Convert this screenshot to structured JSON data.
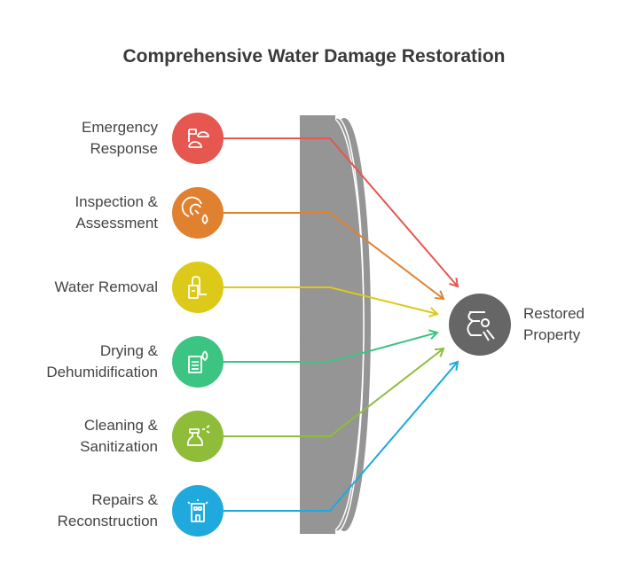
{
  "title": "Comprehensive Water Damage Restoration",
  "inputs": [
    {
      "label_line1": "Emergency",
      "label_line2": "Response",
      "color": "#E5574F",
      "icon": "flag-tents-icon"
    },
    {
      "label_line1": "Inspection &",
      "label_line2": "Assessment",
      "color": "#E0812F",
      "icon": "gauge-drop-icon"
    },
    {
      "label_line1": "Water Removal",
      "label_line2": "",
      "color": "#DDCA18",
      "icon": "vacuum-icon"
    },
    {
      "label_line1": "Drying &",
      "label_line2": "Dehumidification",
      "color": "#3CC483",
      "icon": "dehumidifier-drop-icon"
    },
    {
      "label_line1": "Cleaning &",
      "label_line2": "Sanitization",
      "color": "#8FBD39",
      "icon": "spray-bottle-icon"
    },
    {
      "label_line1": "Repairs &",
      "label_line2": "Reconstruction",
      "color": "#1FA9DC",
      "icon": "building-icon"
    }
  ],
  "output": {
    "label_line1": "Restored",
    "label_line2": "Property",
    "color": "#666666",
    "icon": "vase-brush-icon"
  },
  "lens_color": "#959595"
}
